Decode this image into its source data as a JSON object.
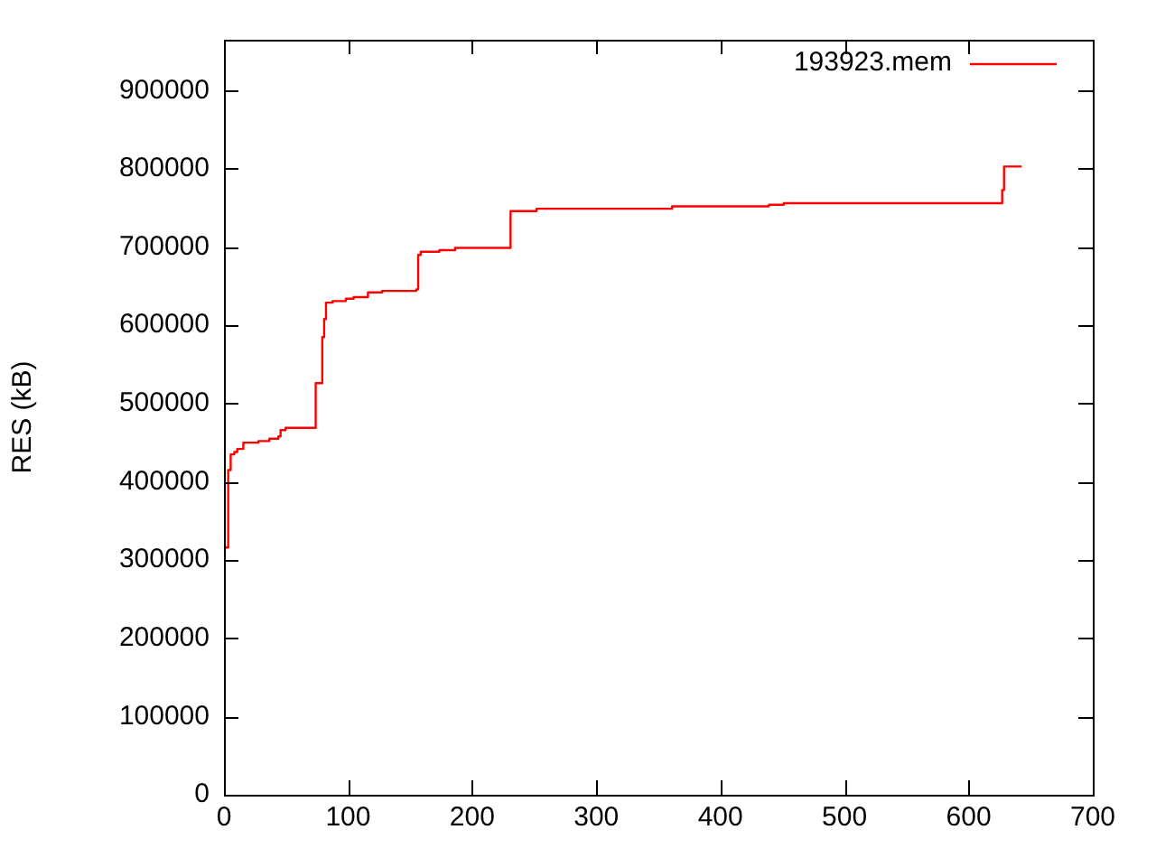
{
  "chart_data": {
    "type": "step",
    "ylabel": "RES (kB)",
    "xlim": [
      0,
      700
    ],
    "xticks": [
      0,
      100,
      200,
      300,
      400,
      500,
      600,
      700
    ],
    "ylim": [
      0,
      965000
    ],
    "yticks": [
      0,
      100000,
      200000,
      300000,
      400000,
      500000,
      600000,
      700000,
      800000,
      900000
    ],
    "grid": false,
    "legend": "top right",
    "marker": "none",
    "line_style": "solid",
    "series": [
      {
        "name": "193923.mem",
        "color": "#ff0000",
        "x": [
          0,
          3.4,
          5.4,
          8.3,
          10.7,
          15.6,
          27.7,
          36.5,
          43.8,
          45.6,
          49.6,
          73.9,
          79.2,
          80.7,
          82.2,
          87.5,
          98.2,
          104.5,
          116,
          127.4,
          155,
          156.5,
          158.5,
          173.5,
          186.2,
          230.9,
          251.8,
          361,
          439,
          451,
          627,
          628.5,
          642.7
        ],
        "values": [
          316000,
          415000,
          435000,
          438000,
          442000,
          450000,
          452000,
          455000,
          458000,
          466000,
          469000,
          526000,
          585000,
          608000,
          629000,
          631000,
          634000,
          636000,
          642000,
          644000,
          646000,
          690000,
          694000,
          696000,
          699000,
          746000,
          749000,
          752000,
          754000,
          756000,
          773000,
          803000,
          803000
        ]
      }
    ]
  }
}
